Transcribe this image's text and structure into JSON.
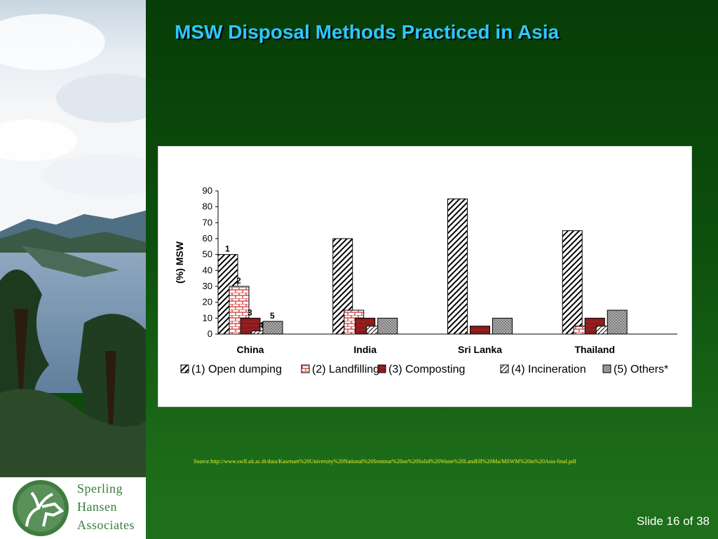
{
  "slide": {
    "title": "MSW Disposal Methods Practiced in Asia",
    "source": "Source:http://www.swlf.ait.ac.th/data/Kasetsart%20University%20National%20Seminar%20on%20Solid%20Waste%20Landfill%20Ma/MSWM%20in%20Asia-final.pdf",
    "slide_number": "Slide 16 of 38"
  },
  "logo": {
    "line1": "Sperling",
    "line2": "Hansen",
    "line3": "Associates"
  },
  "colors": {
    "title": "#2ec8ff",
    "background": "#0e4a0e",
    "source_text": "#f0f030",
    "composting": "#8b1a1a",
    "landfilling_brick": "#d9534f",
    "others": "#888888"
  },
  "chart_data": {
    "type": "bar",
    "ylabel": "(%) MSW",
    "ylim": [
      0,
      90
    ],
    "yticks": [
      0,
      10,
      20,
      30,
      40,
      50,
      60,
      70,
      80,
      90
    ],
    "categories": [
      "China",
      "India",
      "Sri Lanka",
      "Thailand"
    ],
    "series": [
      {
        "name": "(1) Open dumping",
        "pattern": "diagonal-hatch",
        "values": [
          50,
          60,
          85,
          65
        ]
      },
      {
        "name": "(2) Landfilling",
        "pattern": "brick",
        "values": [
          30,
          15,
          0,
          5
        ]
      },
      {
        "name": "(3) Composting",
        "pattern": "dark-red",
        "values": [
          10,
          10,
          5,
          10
        ]
      },
      {
        "name": "(4) Incineration",
        "pattern": "light-diagonal",
        "values": [
          2,
          5,
          0,
          5
        ]
      },
      {
        "name": "(5) Others*",
        "pattern": "dots",
        "values": [
          8,
          10,
          10,
          15
        ]
      }
    ],
    "bar_annotations": [
      "1",
      "2",
      "3",
      "4",
      "5"
    ],
    "legend_position": "bottom",
    "grid": false
  }
}
